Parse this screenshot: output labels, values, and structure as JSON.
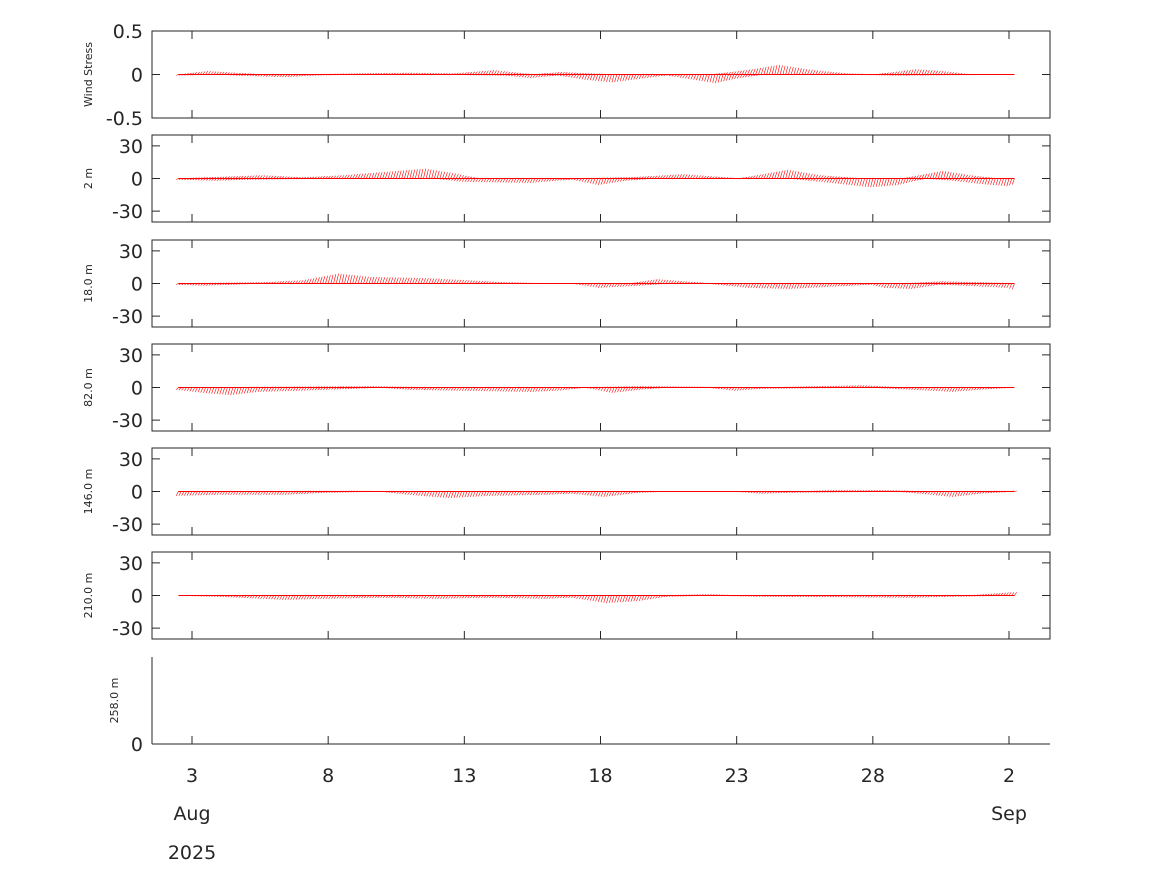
{
  "chart_data": {
    "type": "stick",
    "color": "#ff0000",
    "x_axis": {
      "tick_labels": [
        "3",
        "8",
        "13",
        "18",
        "23",
        "28",
        "2"
      ],
      "month_labels": [
        "Aug",
        "Sep"
      ],
      "year_label": "2025"
    },
    "panels": [
      {
        "ylabel": "Wind Stress",
        "ylim": [
          -0.5,
          0.5
        ],
        "yticks": [
          "0.5",
          "0",
          "-0.5"
        ],
        "envelope_top": [
          [
            2.5,
            0.0
          ],
          [
            3.5,
            0.04
          ],
          [
            4.5,
            0.02
          ],
          [
            5.5,
            0.0
          ],
          [
            7.0,
            0.0
          ],
          [
            9.0,
            0.01
          ],
          [
            11.0,
            0.02
          ],
          [
            12.5,
            0.01
          ],
          [
            14.0,
            0.05
          ],
          [
            15.5,
            0.0
          ],
          [
            16.5,
            0.03
          ],
          [
            17.5,
            0.01
          ],
          [
            18.5,
            0.0
          ],
          [
            20.0,
            0.0
          ],
          [
            22.0,
            0.0
          ],
          [
            23.5,
            0.06
          ],
          [
            24.5,
            0.11
          ],
          [
            25.5,
            0.06
          ],
          [
            27.0,
            0.01
          ],
          [
            28.0,
            0.0
          ],
          [
            29.5,
            0.06
          ],
          [
            30.5,
            0.04
          ],
          [
            31.5,
            0.0
          ],
          [
            33.1,
            0.0
          ]
        ],
        "envelope_bottom": [
          [
            2.5,
            -0.01
          ],
          [
            4.0,
            0.0
          ],
          [
            5.5,
            -0.02
          ],
          [
            6.5,
            -0.03
          ],
          [
            7.5,
            -0.01
          ],
          [
            9.0,
            0.0
          ],
          [
            12.0,
            0.0
          ],
          [
            14.5,
            -0.01
          ],
          [
            15.5,
            -0.04
          ],
          [
            16.5,
            -0.01
          ],
          [
            17.5,
            -0.06
          ],
          [
            18.5,
            -0.09
          ],
          [
            19.5,
            -0.05
          ],
          [
            20.5,
            -0.01
          ],
          [
            21.5,
            -0.06
          ],
          [
            22.3,
            -0.1
          ],
          [
            23.0,
            -0.05
          ],
          [
            24.0,
            0.0
          ],
          [
            27.0,
            0.0
          ],
          [
            29.0,
            -0.01
          ],
          [
            33.1,
            0.0
          ]
        ]
      },
      {
        "ylabel": "2 m",
        "ylim": [
          -40,
          40
        ],
        "yticks": [
          "30",
          "0",
          "-30"
        ],
        "envelope_top": [
          [
            2.5,
            0.0
          ],
          [
            5.5,
            3.0
          ],
          [
            7.0,
            1.0
          ],
          [
            8.5,
            3.0
          ],
          [
            10.0,
            6.0
          ],
          [
            11.5,
            9.0
          ],
          [
            12.5,
            5.0
          ],
          [
            13.5,
            0.0
          ],
          [
            17.0,
            0.0
          ],
          [
            19.0,
            1.0
          ],
          [
            21.0,
            4.0
          ],
          [
            22.0,
            2.0
          ],
          [
            23.0,
            0.0
          ],
          [
            24.8,
            8.0
          ],
          [
            26.0,
            3.0
          ],
          [
            27.5,
            0.0
          ],
          [
            29.0,
            0.0
          ],
          [
            30.5,
            7.0
          ],
          [
            31.5,
            3.0
          ],
          [
            32.5,
            0.0
          ],
          [
            33.2,
            0.0
          ]
        ],
        "envelope_bottom": [
          [
            2.5,
            -1.0
          ],
          [
            4.0,
            -2.0
          ],
          [
            5.0,
            -1.0
          ],
          [
            8.0,
            0.0
          ],
          [
            12.0,
            0.0
          ],
          [
            13.0,
            -3.0
          ],
          [
            15.5,
            -4.0
          ],
          [
            17.0,
            -1.0
          ],
          [
            18.0,
            -6.0
          ],
          [
            19.0,
            -2.0
          ],
          [
            20.0,
            0.0
          ],
          [
            25.0,
            0.0
          ],
          [
            26.5,
            -4.0
          ],
          [
            28.0,
            -8.0
          ],
          [
            29.0,
            -6.0
          ],
          [
            30.0,
            0.0
          ],
          [
            31.0,
            -2.0
          ],
          [
            32.0,
            -5.0
          ],
          [
            33.0,
            -7.0
          ],
          [
            33.3,
            -5.0
          ]
        ]
      },
      {
        "ylabel": "18.0 m",
        "ylim": [
          -40,
          40
        ],
        "yticks": [
          "30",
          "0",
          "-30"
        ],
        "envelope_top": [
          [
            2.5,
            0.0
          ],
          [
            5.5,
            1.0
          ],
          [
            7.0,
            3.0
          ],
          [
            8.3,
            9.0
          ],
          [
            9.5,
            6.0
          ],
          [
            11.5,
            5.0
          ],
          [
            13.0,
            3.0
          ],
          [
            14.5,
            1.0
          ],
          [
            16.0,
            0.0
          ],
          [
            19.0,
            0.0
          ],
          [
            20.0,
            4.0
          ],
          [
            21.0,
            2.0
          ],
          [
            22.0,
            0.0
          ],
          [
            29.0,
            0.0
          ],
          [
            30.5,
            2.0
          ],
          [
            33.2,
            0.0
          ]
        ],
        "envelope_bottom": [
          [
            2.5,
            -1.0
          ],
          [
            3.5,
            -2.0
          ],
          [
            4.5,
            -1.0
          ],
          [
            5.5,
            0.0
          ],
          [
            17.0,
            0.0
          ],
          [
            18.0,
            -4.0
          ],
          [
            19.5,
            -2.0
          ],
          [
            20.5,
            0.0
          ],
          [
            22.0,
            0.0
          ],
          [
            23.5,
            -4.0
          ],
          [
            25.0,
            -5.0
          ],
          [
            26.5,
            -3.0
          ],
          [
            28.0,
            -1.0
          ],
          [
            28.5,
            -4.0
          ],
          [
            29.5,
            -5.0
          ],
          [
            30.5,
            -1.0
          ],
          [
            31.5,
            -2.0
          ],
          [
            33.0,
            -4.0
          ],
          [
            33.3,
            -6.0
          ]
        ]
      },
      {
        "ylabel": "82.0 m",
        "ylim": [
          -40,
          40
        ],
        "yticks": [
          "30",
          "0",
          "-30"
        ],
        "envelope_top": [
          [
            2.5,
            0.0
          ],
          [
            9.5,
            1.0
          ],
          [
            12.0,
            0.0
          ],
          [
            17.0,
            0.0
          ],
          [
            19.5,
            1.0
          ],
          [
            24.0,
            0.0
          ],
          [
            27.5,
            2.0
          ],
          [
            29.0,
            0.0
          ],
          [
            33.2,
            0.0
          ]
        ],
        "envelope_bottom": [
          [
            2.5,
            -2.0
          ],
          [
            3.5,
            -5.0
          ],
          [
            4.5,
            -7.0
          ],
          [
            5.5,
            -4.0
          ],
          [
            7.0,
            -3.0
          ],
          [
            9.0,
            -1.0
          ],
          [
            10.0,
            0.0
          ],
          [
            11.0,
            -2.0
          ],
          [
            13.0,
            -3.0
          ],
          [
            15.5,
            -4.0
          ],
          [
            16.5,
            -3.0
          ],
          [
            17.5,
            0.0
          ],
          [
            18.5,
            -5.0
          ],
          [
            19.5,
            -2.0
          ],
          [
            20.5,
            0.0
          ],
          [
            22.0,
            0.0
          ],
          [
            23.0,
            -3.0
          ],
          [
            24.0,
            -1.0
          ],
          [
            28.0,
            0.0
          ],
          [
            29.5,
            -2.0
          ],
          [
            31.0,
            -4.0
          ],
          [
            32.0,
            -2.0
          ],
          [
            33.2,
            0.0
          ]
        ]
      },
      {
        "ylabel": "146.0 m",
        "ylim": [
          -40,
          40
        ],
        "yticks": [
          "30",
          "0",
          "-30"
        ],
        "envelope_top": [
          [
            2.5,
            0.0
          ],
          [
            9.0,
            0.5
          ],
          [
            11.0,
            0.0
          ],
          [
            25.0,
            0.0
          ],
          [
            26.5,
            1.0
          ],
          [
            28.5,
            1.0
          ],
          [
            30.0,
            0.0
          ],
          [
            33.2,
            0.5
          ]
        ],
        "envelope_bottom": [
          [
            2.5,
            -4.0
          ],
          [
            4.0,
            -3.0
          ],
          [
            6.5,
            -3.0
          ],
          [
            8.0,
            -1.0
          ],
          [
            10.0,
            0.0
          ],
          [
            11.0,
            -3.0
          ],
          [
            12.5,
            -6.0
          ],
          [
            14.0,
            -4.0
          ],
          [
            16.0,
            -3.0
          ],
          [
            17.0,
            -2.0
          ],
          [
            18.2,
            -5.0
          ],
          [
            19.5,
            -1.0
          ],
          [
            20.5,
            0.0
          ],
          [
            23.0,
            0.0
          ],
          [
            24.0,
            -2.0
          ],
          [
            25.0,
            -1.0
          ],
          [
            29.0,
            0.0
          ],
          [
            31.0,
            -5.0
          ],
          [
            32.0,
            -2.0
          ],
          [
            33.2,
            0.0
          ]
        ]
      },
      {
        "ylabel": "210.0 m",
        "ylim": [
          -40,
          40
        ],
        "yticks": [
          "30",
          "0",
          "-30"
        ],
        "envelope_top": [
          [
            2.5,
            0.0
          ],
          [
            20.0,
            0.0
          ],
          [
            22.0,
            1.0
          ],
          [
            23.0,
            0.0
          ],
          [
            31.5,
            0.0
          ],
          [
            33.0,
            3.0
          ],
          [
            33.2,
            3.0
          ]
        ],
        "envelope_bottom": [
          [
            2.5,
            0.0
          ],
          [
            4.0,
            -1.0
          ],
          [
            6.5,
            -4.0
          ],
          [
            8.0,
            -3.0
          ],
          [
            10.0,
            -2.0
          ],
          [
            12.0,
            -3.0
          ],
          [
            14.0,
            -2.0
          ],
          [
            16.0,
            -3.0
          ],
          [
            17.0,
            -2.0
          ],
          [
            18.3,
            -7.0
          ],
          [
            19.5,
            -5.0
          ],
          [
            20.5,
            -1.0
          ],
          [
            22.0,
            0.0
          ],
          [
            24.0,
            -1.0
          ],
          [
            29.5,
            -2.0
          ],
          [
            31.0,
            -1.0
          ],
          [
            33.2,
            0.0
          ]
        ]
      },
      {
        "ylabel": "258.0 m",
        "yticks": [
          "0"
        ],
        "envelope_top": [],
        "envelope_bottom": []
      }
    ]
  }
}
